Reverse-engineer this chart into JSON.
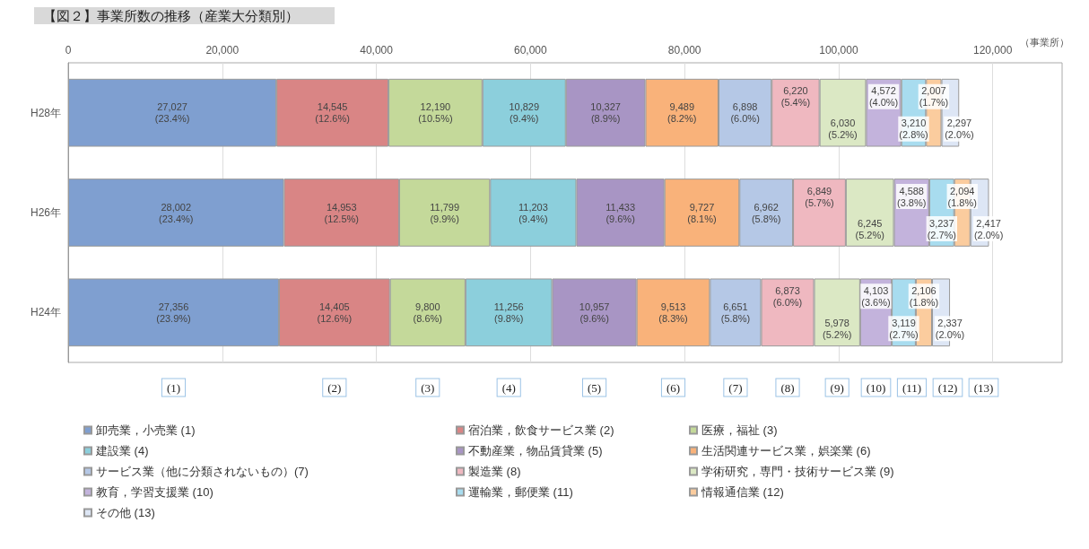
{
  "chart_data": {
    "type": "bar",
    "orientation": "horizontal",
    "stacked": true,
    "title": "【図２】事業所数の推移（産業大分類別）",
    "xlabel": "（事業所）",
    "categories": [
      "H28年",
      "H26年",
      "H24年"
    ],
    "xlim": [
      0,
      129000
    ],
    "xticks": [
      {
        "value": 0,
        "label": "0"
      },
      {
        "value": 20000,
        "label": "20,000"
      },
      {
        "value": 40000,
        "label": "40,000"
      },
      {
        "value": 60000,
        "label": "60,000"
      },
      {
        "value": 80000,
        "label": "80,000"
      },
      {
        "value": 100000,
        "label": "100,000"
      },
      {
        "value": 120000,
        "label": "120,000"
      }
    ],
    "grid": "x",
    "legend": "bottom",
    "series": [
      {
        "name": "卸売業，小売業 (1)",
        "color": "#7f9fd0",
        "values": [
          27027,
          28002,
          27356
        ],
        "value_labels": [
          "27,027 (23.4%)",
          "28,002 (23.4%)",
          "27,356 (23.9%)"
        ]
      },
      {
        "name": "宿泊業，飲食サービス業 (2)",
        "color": "#d98585",
        "values": [
          14545,
          14953,
          14405
        ],
        "value_labels": [
          "14,545 (12.6%)",
          "14,953 (12.5%)",
          "14,405 (12.6%)"
        ]
      },
      {
        "name": "医療，福祉 (3)",
        "color": "#c4d99a",
        "values": [
          12190,
          11799,
          9800
        ],
        "value_labels": [
          "12,190 (10.5%)",
          "11,799 (9.9%)",
          "9,800 (8.6%)"
        ]
      },
      {
        "name": "建設業 (4)",
        "color": "#8ccfdc",
        "values": [
          10829,
          11203,
          11256
        ],
        "value_labels": [
          "10,829 (9.4%)",
          "11,203 (9.4%)",
          "11,256 (9.8%)"
        ]
      },
      {
        "name": "不動産業，物品賃貸業 (5)",
        "color": "#a895c4",
        "values": [
          10327,
          11433,
          10957
        ],
        "value_labels": [
          "10,327 (8.9%)",
          "11,433 (9.6%)",
          "10,957 (9.6%)"
        ]
      },
      {
        "name": "生活関連サービス業，娯楽業 (6)",
        "color": "#f9b27a",
        "values": [
          9489,
          9727,
          9513
        ],
        "value_labels": [
          "9,489 (8.2%)",
          "9,727 (8.1%)",
          "9,513 (8.3%)"
        ]
      },
      {
        "name": "サービス業（他に分類されないもの）(7)",
        "color": "#b5c8e6",
        "values": [
          6898,
          6962,
          6651
        ],
        "value_labels": [
          "6,898 (6.0%)",
          "6,962 (5.8%)",
          "6,651 (5.8%)"
        ]
      },
      {
        "name": "製造業 (8)",
        "color": "#efb8c0",
        "values": [
          6220,
          6849,
          6873
        ],
        "value_labels": [
          "6,220 (5.4%)",
          "6,849 (5.7%)",
          "6,873 (6.0%)"
        ]
      },
      {
        "name": "学術研究，専門・技術サービス業 (9)",
        "color": "#dbe8c4",
        "values": [
          6030,
          6245,
          5978
        ],
        "value_labels": [
          "6,030 (5.2%)",
          "6,245 (5.2%)",
          "5,978 (5.2%)"
        ]
      },
      {
        "name": "教育，学習支援業 (10)",
        "color": "#c3b3dc",
        "values": [
          4572,
          4588,
          4103
        ],
        "value_labels": [
          "4,572 (4.0%)",
          "4,588 (3.8%)",
          "4,103 (3.6%)"
        ]
      },
      {
        "name": "運輸業，郵便業 (11)",
        "color": "#a8dcef",
        "values": [
          3210,
          3237,
          3119
        ],
        "value_labels": [
          "3,210 (2.8%)",
          "3,237 (2.7%)",
          "3,119 (2.7%)"
        ]
      },
      {
        "name": "情報通信業 (12)",
        "color": "#fbcc9e",
        "values": [
          2007,
          2094,
          2106
        ],
        "value_labels": [
          "2,007 (1.7%)",
          "2,094 (1.8%)",
          "2,106 (1.8%)"
        ]
      },
      {
        "name": "その他 (13)",
        "color": "#dde6f5",
        "values": [
          2297,
          2417,
          2337
        ],
        "value_labels": [
          "2,297 (2.0%)",
          "2,417 (2.0%)",
          "2,337 (2.0%)"
        ]
      }
    ],
    "annotations": [
      "(1)",
      "(2)",
      "(3)",
      "(4)",
      "(5)",
      "(6)",
      "(7)",
      "(8)",
      "(9)",
      "(10)",
      "(11)",
      "(12)",
      "(13)"
    ]
  }
}
